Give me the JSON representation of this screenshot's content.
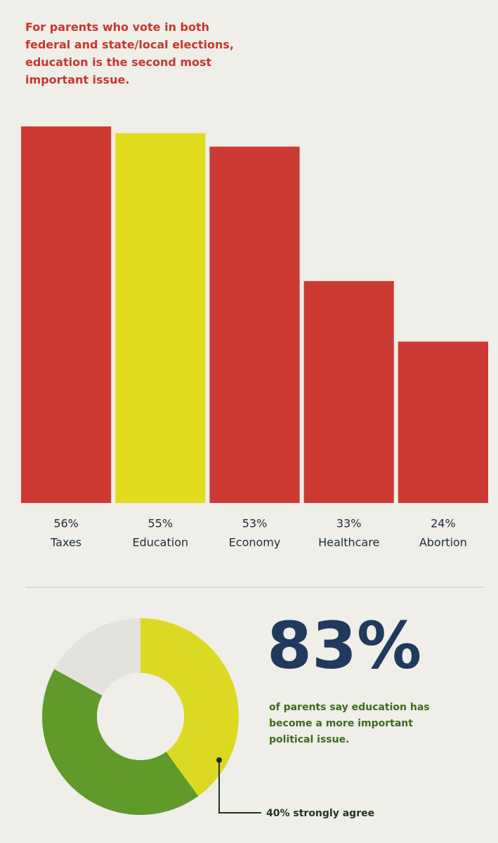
{
  "chart_data": [
    {
      "type": "bar",
      "title": "For parents who vote in both federal and state/local elections, education is the second most important issue.",
      "categories": [
        "Taxes",
        "Education",
        "Economy",
        "Healthcare",
        "Abortion"
      ],
      "values": [
        56,
        55,
        53,
        33,
        24
      ],
      "value_labels": [
        "56%",
        "55%",
        "53%",
        "33%",
        "24%"
      ],
      "colors": [
        "#cc3a33",
        "#e2dc1f",
        "#cc3a33",
        "#cc3a33",
        "#cc3a33"
      ]
    },
    {
      "type": "donut",
      "values": [
        40,
        43,
        17
      ],
      "colors": [
        "#dcd923",
        "#5f9a2a",
        "#e3e2dc"
      ],
      "headline": {
        "value": 83,
        "label": "83%"
      },
      "caption": "of parents say education has become a more important political issue.",
      "annotation": "40% strongly agree"
    }
  ]
}
